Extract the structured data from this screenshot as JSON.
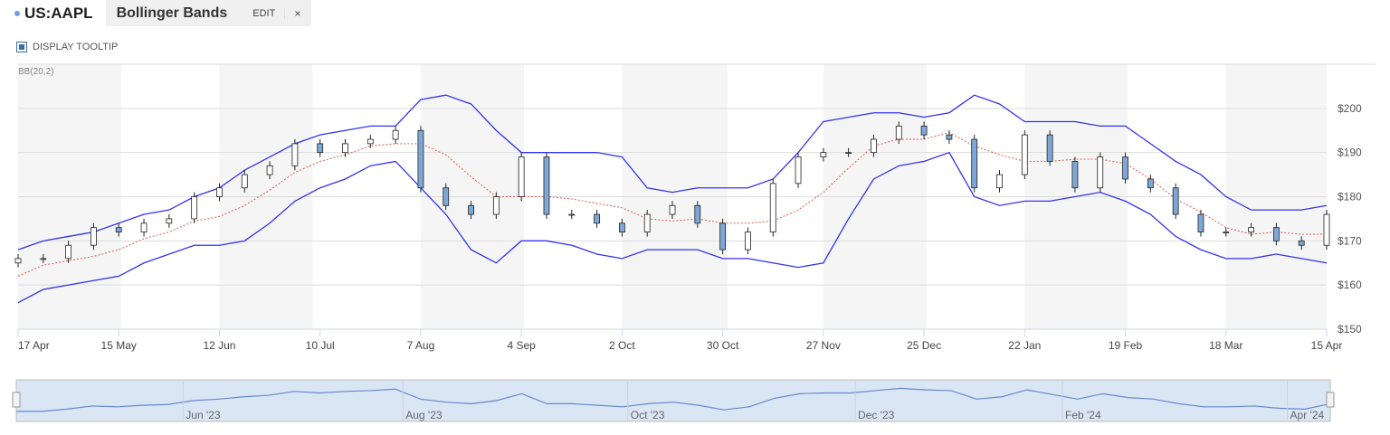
{
  "header": {
    "symbol": "US:AAPL",
    "study_tab": "Bollinger Bands",
    "edit_label": "EDIT",
    "close_label": "×"
  },
  "tooltip_toggle": {
    "label": "DISPLAY TOOLTIP",
    "checked": true
  },
  "colors": {
    "band": "#3333ee",
    "middle": "#e05a4a",
    "down": "#7fa7d6",
    "up": "#ffffff",
    "nav_fill": "#dbe6f5",
    "nav_line": "#6688cc"
  },
  "chart_data": {
    "type": "candlestick",
    "indicator_label": "BB(20,2)",
    "ylim": [
      150,
      210
    ],
    "y_ticks": [
      {
        "v": 200,
        "label": "$200"
      },
      {
        "v": 190,
        "label": "$190"
      },
      {
        "v": 180,
        "label": "$180"
      },
      {
        "v": 170,
        "label": "$170"
      },
      {
        "v": 160,
        "label": "$160"
      },
      {
        "v": 150,
        "label": "$150"
      }
    ],
    "x_tick_labels": [
      "17 Apr",
      "15 May",
      "12 Jun",
      "10 Jul",
      "7 Aug",
      "4 Sep",
      "2 Oct",
      "30 Oct",
      "27 Nov",
      "25 Dec",
      "22 Jan",
      "19 Feb",
      "18 Mar",
      "15 Apr"
    ],
    "x_tick_weeks": [
      0,
      4,
      8,
      12,
      16,
      20,
      24,
      28,
      32,
      36,
      40,
      44,
      48,
      52
    ],
    "shaded_week_ranges": [
      [
        0,
        4.1
      ],
      [
        8,
        11.7
      ],
      [
        16,
        20.1
      ],
      [
        24,
        28.2
      ],
      [
        32,
        36.1
      ],
      [
        40,
        44.1
      ],
      [
        48,
        52
      ]
    ],
    "weekly_close": [
      166,
      166,
      169,
      173,
      172,
      174,
      175,
      180,
      182,
      185,
      187,
      192,
      190,
      192,
      193,
      195,
      182,
      178,
      176,
      180,
      189,
      176,
      176,
      174,
      172,
      176,
      178,
      174,
      168,
      172,
      183,
      189,
      190,
      190,
      193,
      196,
      194,
      193,
      182,
      185,
      194,
      188,
      182,
      189,
      184,
      182,
      176,
      172,
      172,
      173,
      170,
      169,
      176
    ],
    "upper": [
      168,
      170,
      171,
      172,
      174,
      176,
      177,
      180,
      182,
      186,
      189,
      192,
      194,
      195,
      196,
      196,
      202,
      203,
      201,
      195,
      190,
      190,
      190,
      190,
      189,
      182,
      181,
      182,
      182,
      182,
      184,
      190,
      197,
      198,
      199,
      199,
      198,
      199,
      203,
      201,
      197,
      197,
      197,
      196,
      196,
      192,
      188,
      185,
      180,
      177,
      177,
      177,
      178
    ],
    "middle": [
      162,
      164.5,
      165.5,
      166.5,
      168,
      170.5,
      172,
      174.5,
      175.5,
      178,
      181.5,
      185.5,
      188,
      189.5,
      191.5,
      192,
      192,
      189.5,
      184.5,
      180,
      180,
      180,
      179.5,
      178.5,
      177.5,
      175,
      174.5,
      175,
      174,
      174,
      174.5,
      177,
      181,
      186.5,
      191.5,
      193,
      193,
      194.5,
      191.5,
      189.5,
      188,
      188,
      188.5,
      188.5,
      187.5,
      184,
      179.5,
      176.5,
      173,
      171.5,
      172,
      171.5,
      171.5
    ],
    "lower": [
      156,
      159,
      160,
      161,
      162,
      165,
      167,
      169,
      169,
      170,
      174,
      179,
      182,
      184,
      187,
      188,
      182,
      176,
      168,
      165,
      170,
      170,
      169,
      167,
      166,
      168,
      168,
      168,
      166,
      166,
      165,
      164,
      165,
      175,
      184,
      187,
      188,
      190,
      180,
      178,
      179,
      179,
      180,
      181,
      179,
      176,
      171,
      168,
      166,
      166,
      167,
      166,
      165
    ],
    "navigator_labels": [
      {
        "w": 6.6,
        "label": "Jun '23"
      },
      {
        "w": 15.3,
        "label": "Aug '23"
      },
      {
        "w": 24.2,
        "label": "Oct '23"
      },
      {
        "w": 33.2,
        "label": "Dec '23"
      },
      {
        "w": 41.4,
        "label": "Feb '24"
      },
      {
        "w": 50.3,
        "label": "Apr '24"
      }
    ]
  }
}
